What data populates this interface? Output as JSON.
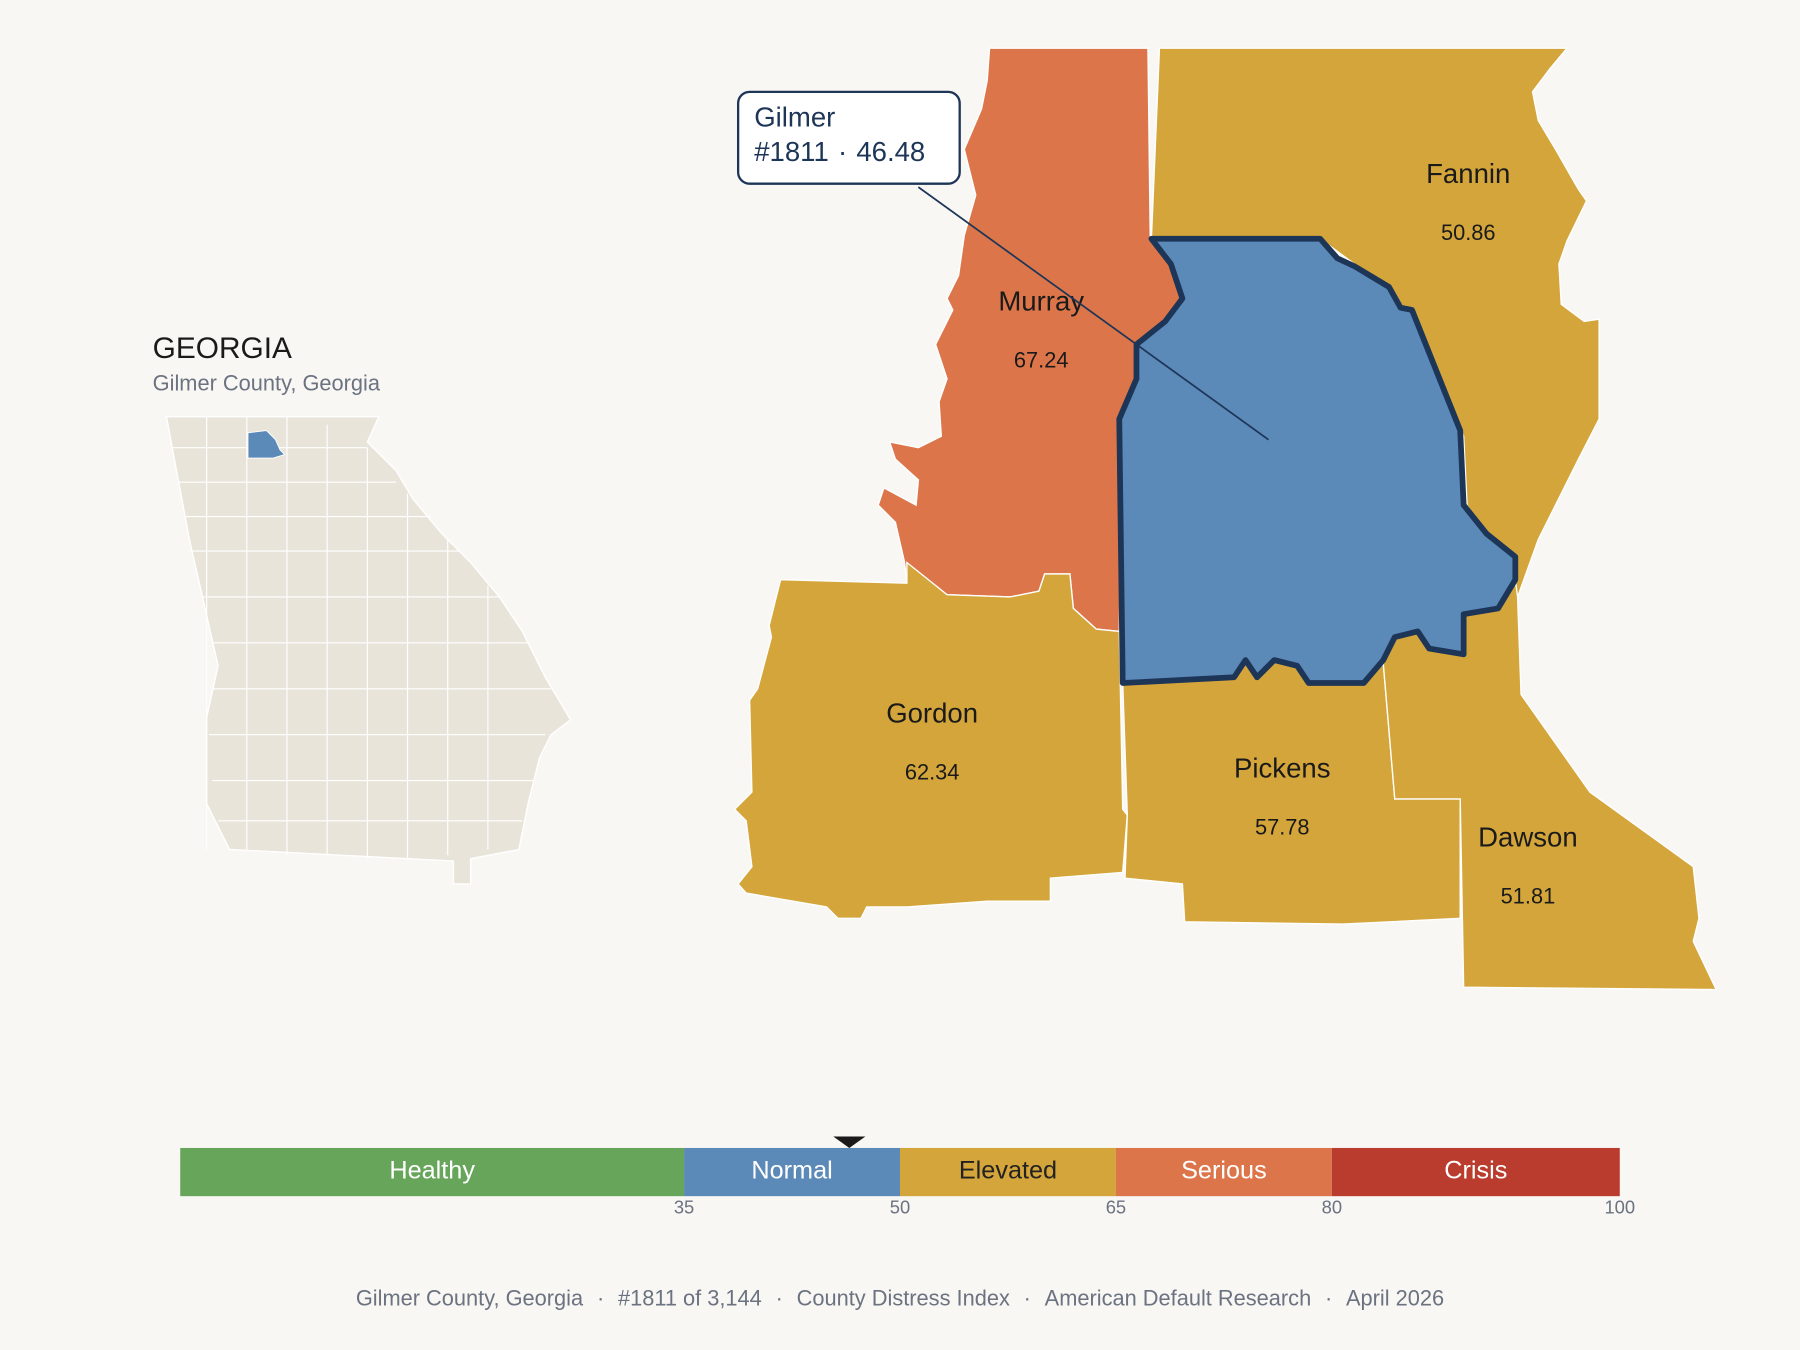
{
  "header": {
    "title": "GEORGIA",
    "subtitle": "Gilmer County, Georgia"
  },
  "selected": {
    "name": "Gilmer",
    "rank": "#1811",
    "separator": "·",
    "value": 46.48
  },
  "counties": [
    {
      "name": "Murray",
      "value": 67.24
    },
    {
      "name": "Fannin",
      "value": 50.86
    },
    {
      "name": "Gordon",
      "value": 62.34
    },
    {
      "name": "Pickens",
      "value": 57.78
    },
    {
      "name": "Dawson",
      "value": 51.81
    }
  ],
  "scale": {
    "range": [
      0,
      100
    ],
    "ticks": [
      35,
      50,
      65,
      80,
      100
    ],
    "bands": [
      {
        "label": "Healthy",
        "color": "#67a65a",
        "label_color": "#ffffff"
      },
      {
        "label": "Normal",
        "color": "#5b89b8",
        "label_color": "#ffffff"
      },
      {
        "label": "Elevated",
        "color": "#d4a53a",
        "label_color": "#222222"
      },
      {
        "label": "Serious",
        "color": "#dc764a",
        "label_color": "#ffffff"
      },
      {
        "label": "Crisis",
        "color": "#ba3c2e",
        "label_color": "#ffffff"
      }
    ]
  },
  "footer": {
    "items": [
      "Gilmer County, Georgia",
      "#1811 of 3,144",
      "County Distress Index",
      "American Default Research",
      "April 2026"
    ],
    "separator": "·"
  }
}
